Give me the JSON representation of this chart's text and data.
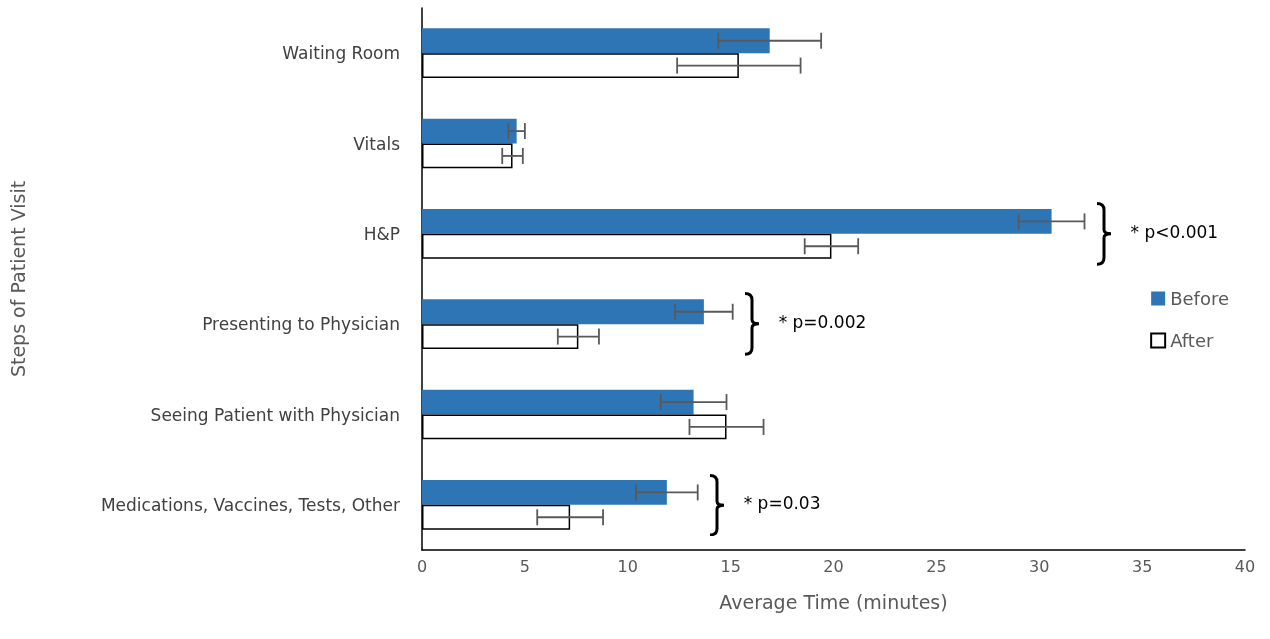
{
  "chart_data": {
    "type": "bar",
    "orientation": "horizontal",
    "categories": [
      "Waiting Room",
      "Vitals",
      "H&P",
      "Presenting to Physician",
      "Seeing Patient with Physician",
      "Medications, Vaccines, Tests, Other"
    ],
    "series": [
      {
        "name": "Before",
        "color": "#2e75b6",
        "values": [
          16.9,
          4.6,
          30.6,
          13.7,
          13.2,
          11.9
        ],
        "errors": [
          2.5,
          0.4,
          1.6,
          1.4,
          1.6,
          1.5
        ]
      },
      {
        "name": "After",
        "color": "#ffffff",
        "values": [
          15.4,
          4.4,
          19.9,
          7.6,
          14.8,
          7.2
        ],
        "errors": [
          3.0,
          0.5,
          1.3,
          1.0,
          1.8,
          1.6
        ]
      }
    ],
    "xlabel": "Average Time (minutes)",
    "ylabel": "Steps of Patient Visit",
    "xlim": [
      0,
      40
    ],
    "xticks": [
      0,
      5,
      10,
      15,
      20,
      25,
      30,
      35,
      40
    ],
    "grid": false,
    "legend": "right",
    "annotations": [
      "* p<0.001",
      "* p=0.002",
      "* p=0.03"
    ]
  }
}
